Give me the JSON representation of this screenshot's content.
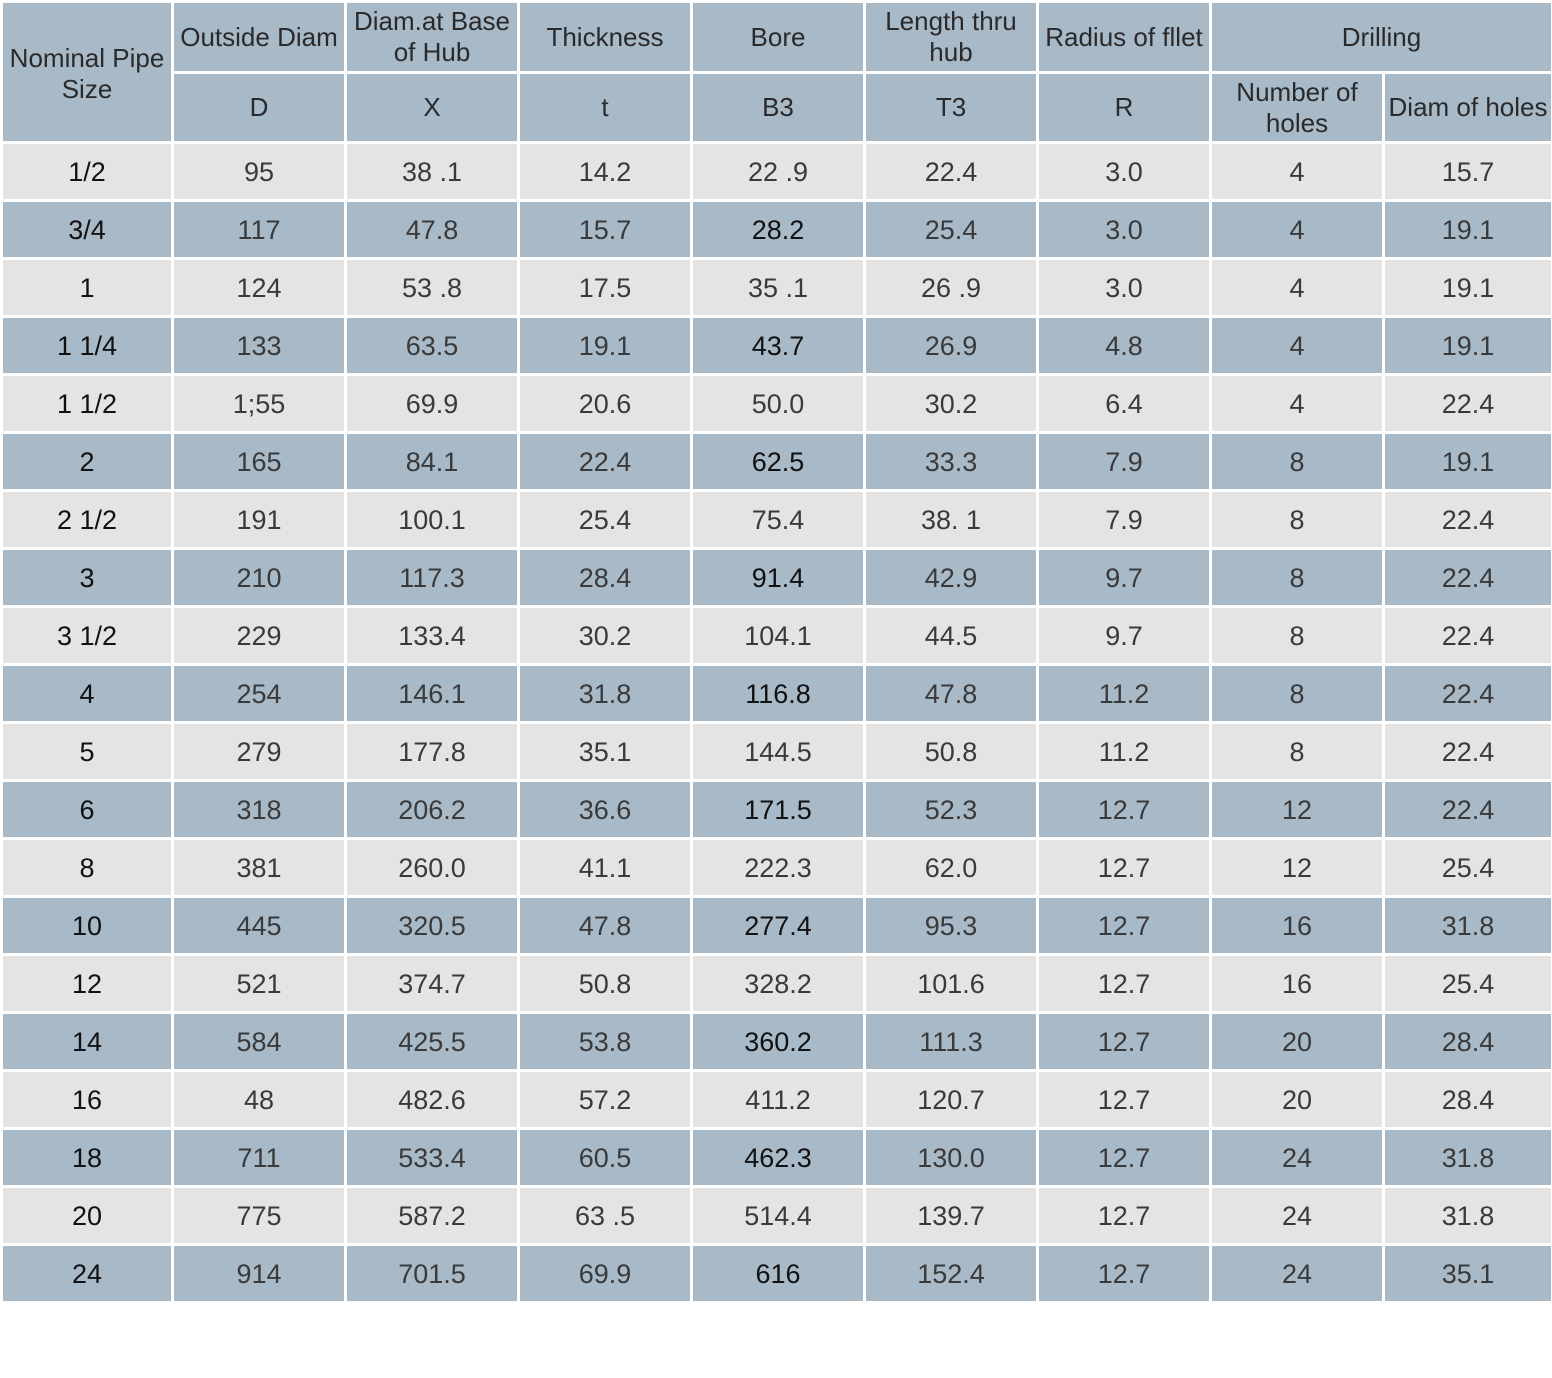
{
  "colors": {
    "header_bg": "#a8b9c8",
    "row_light": "#e4e4e4",
    "row_dark": "#a8b9c8",
    "grid_line": "#ffffff"
  },
  "headers": {
    "nominal": "Nominal Pipe Size",
    "outside_diam": "Outside Diam",
    "diam_base_hub": "Diam.at Base of Hub",
    "thickness": "Thickness",
    "bore": "Bore",
    "length": "Length  thru hub",
    "radius": "Radius of fllet",
    "drilling": "Drilling",
    "sym_d": "D",
    "sym_x": "X",
    "sym_t": "t",
    "sym_b3": "B3",
    "sym_t3": "T3",
    "sym_r": "R",
    "num_holes": "Number of holes",
    "diam_holes": "Diam of holes"
  },
  "rows": [
    [
      "1/2",
      "95",
      "38 .1",
      "14.2",
      "22 .9",
      "22.4",
      "3.0",
      "4",
      "15.7"
    ],
    [
      "3/4",
      "117",
      "47.8",
      "15.7",
      "28.2",
      "25.4",
      "3.0",
      "4",
      "19.1"
    ],
    [
      "1",
      "124",
      "53 .8",
      "17.5",
      "35 .1",
      "26 .9",
      "3.0",
      "4",
      "19.1"
    ],
    [
      "1 1/4",
      "133",
      "63.5",
      "19.1",
      "43.7",
      "26.9",
      "4.8",
      "4",
      "19.1"
    ],
    [
      "1 1/2",
      "1;55",
      "69.9",
      "20.6",
      "50.0",
      "30.2",
      "6.4",
      "4",
      "22.4"
    ],
    [
      "2",
      "165",
      "84.1",
      "22.4",
      "62.5",
      "33.3",
      "7.9",
      "8",
      "19.1"
    ],
    [
      "2 1/2",
      "191",
      "100.1",
      "25.4",
      "75.4",
      "38. 1",
      "7.9",
      "8",
      "22.4"
    ],
    [
      "3",
      "210",
      "117.3",
      "28.4",
      "91.4",
      "42.9",
      "9.7",
      "8",
      "22.4"
    ],
    [
      "3 1/2",
      "229",
      "133.4",
      "30.2",
      "104.1",
      "44.5",
      "9.7",
      "8",
      "22.4"
    ],
    [
      "4",
      "254",
      "146.1",
      "31.8",
      "116.8",
      "47.8",
      "11.2",
      "8",
      "22.4"
    ],
    [
      "5",
      "279",
      "177.8",
      "35.1",
      "144.5",
      "50.8",
      "11.2",
      "8",
      "22.4"
    ],
    [
      "6",
      "318",
      "206.2",
      "36.6",
      "171.5",
      "52.3",
      "12.7",
      "12",
      "22.4"
    ],
    [
      "8",
      "381",
      "260.0",
      "41.1",
      "222.3",
      "62.0",
      "12.7",
      "12",
      "25.4"
    ],
    [
      "10",
      "445",
      "320.5",
      "47.8",
      "277.4",
      "95.3",
      "12.7",
      "16",
      "31.8"
    ],
    [
      "12",
      "521",
      "374.7",
      "50.8",
      "328.2",
      "101.6",
      "12.7",
      "16",
      "25.4"
    ],
    [
      "14",
      "584",
      "425.5",
      "53.8",
      "360.2",
      "111.3",
      "12.7",
      "20",
      "28.4"
    ],
    [
      "16",
      "48",
      "482.6",
      "57.2",
      "411.2",
      "120.7",
      "12.7",
      "20",
      "28.4"
    ],
    [
      "18",
      "711",
      "533.4",
      "60.5",
      "462.3",
      "130.0",
      "12.7",
      "24",
      "31.8"
    ],
    [
      "20",
      "775",
      "587.2",
      "63 .5",
      "514.4",
      "139.7",
      "12.7",
      "24",
      "31.8"
    ],
    [
      "24",
      "914",
      "701.5",
      "69.9",
      "616",
      "152.4",
      "12.7",
      "24",
      "35.1"
    ]
  ]
}
